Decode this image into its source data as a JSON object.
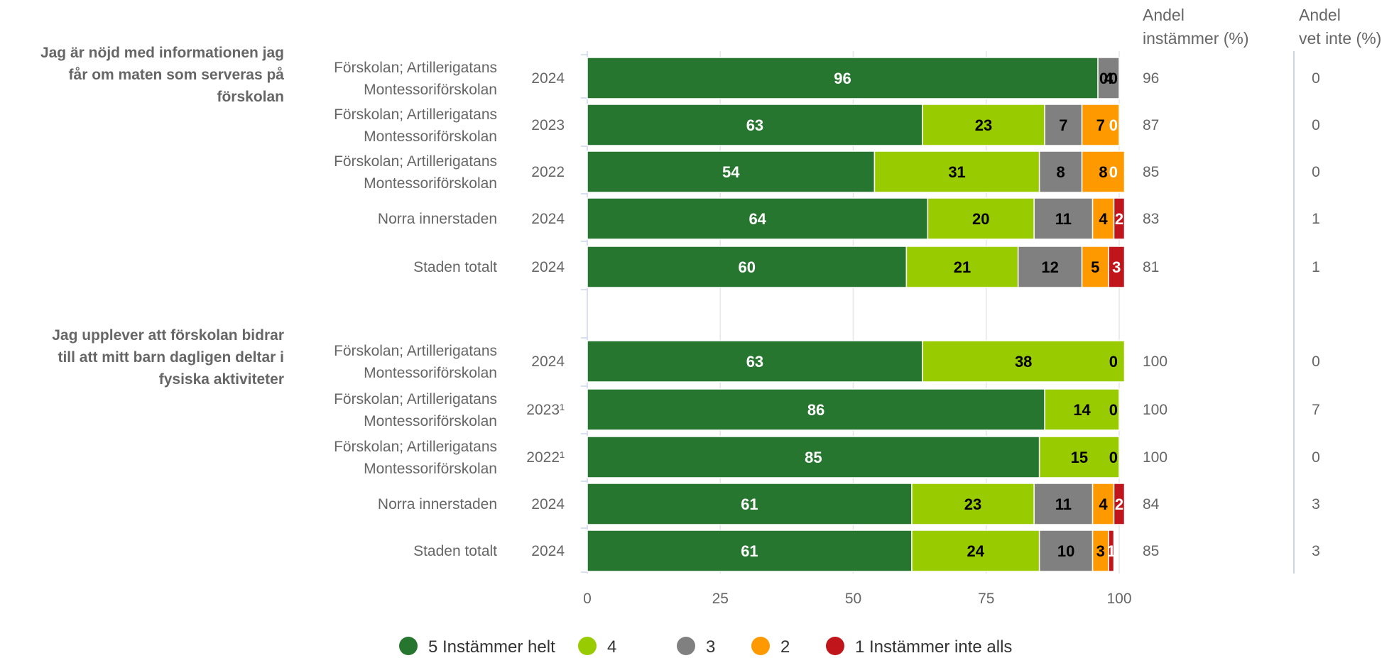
{
  "chart_data": {
    "type": "bar",
    "orientation": "horizontal",
    "stacked": true,
    "xlim": [
      0,
      100
    ],
    "x_ticks": [
      "0",
      "25",
      "50",
      "75",
      "100"
    ],
    "grid": true,
    "legend_position": "bottom",
    "colors": [
      "#267630",
      "#99cc00",
      "#808080",
      "#ff9900",
      "#c0161b"
    ],
    "label_colors": [
      "#ffffff",
      "#000000",
      "#000000",
      "#000000",
      "#ffffff"
    ],
    "series": [
      {
        "name": "5 Instämmer helt"
      },
      {
        "name": "4"
      },
      {
        "name": "3"
      },
      {
        "name": "2"
      },
      {
        "name": "1 Instämmer inte alls"
      }
    ],
    "stat_headers": [
      [
        "Andel",
        "instämmer (%)"
      ],
      [
        "Andel",
        "vet inte (%)"
      ]
    ],
    "groups": [
      {
        "title": [
          "Jag är nöjd med informationen jag",
          "får om maten som serveras på",
          "förskolan"
        ],
        "rows": [
          {
            "label": [
              "Förskolan; Artillerigatans",
              "Montessoriförskolan"
            ],
            "year": "2024",
            "values": [
              96,
              0,
              4,
              0,
              0
            ],
            "labels": [
              "96",
              "0",
              "4",
              "0",
              ""
            ],
            "agree": "96",
            "dont_know": "0"
          },
          {
            "label": [
              "Förskolan; Artillerigatans",
              "Montessoriförskolan"
            ],
            "year": "2023",
            "values": [
              63,
              23,
              7,
              7,
              0
            ],
            "labels": [
              "63",
              "23",
              "7",
              "7",
              "0"
            ],
            "agree": "87",
            "dont_know": "0"
          },
          {
            "label": [
              "Förskolan; Artillerigatans",
              "Montessoriförskolan"
            ],
            "year": "2022",
            "values": [
              54,
              31,
              8,
              8,
              0
            ],
            "labels": [
              "54",
              "31",
              "8",
              "8",
              "0"
            ],
            "agree": "85",
            "dont_know": "0"
          },
          {
            "label": [
              "Norra innerstaden"
            ],
            "year": "2024",
            "values": [
              64,
              20,
              11,
              4,
              2
            ],
            "labels": [
              "64",
              "20",
              "11",
              "4",
              "2"
            ],
            "agree": "83",
            "dont_know": "1"
          },
          {
            "label": [
              "Staden totalt"
            ],
            "year": "2024",
            "values": [
              60,
              21,
              12,
              5,
              3
            ],
            "labels": [
              "60",
              "21",
              "12",
              "5",
              "3"
            ],
            "agree": "81",
            "dont_know": "1"
          }
        ]
      },
      {
        "title": [
          "Jag upplever att förskolan bidrar",
          "till att mitt barn dagligen deltar i",
          "fysiska aktiviteter"
        ],
        "rows": [
          {
            "label": [
              "Förskolan; Artillerigatans",
              "Montessoriförskolan"
            ],
            "year": "2024",
            "values": [
              63,
              38,
              0,
              0,
              0
            ],
            "labels": [
              "63",
              "38",
              "0",
              "",
              ""
            ],
            "agree": "100",
            "dont_know": "0"
          },
          {
            "label": [
              "Förskolan; Artillerigatans",
              "Montessoriförskolan"
            ],
            "year": "2023¹",
            "values": [
              86,
              14,
              0,
              0,
              0
            ],
            "labels": [
              "86",
              "14",
              "0",
              "",
              ""
            ],
            "agree": "100",
            "dont_know": "7"
          },
          {
            "label": [
              "Förskolan; Artillerigatans",
              "Montessoriförskolan"
            ],
            "year": "2022¹",
            "values": [
              85,
              15,
              0,
              0,
              0
            ],
            "labels": [
              "85",
              "15",
              "0",
              "",
              ""
            ],
            "agree": "100",
            "dont_know": "0"
          },
          {
            "label": [
              "Norra innerstaden"
            ],
            "year": "2024",
            "values": [
              61,
              23,
              11,
              4,
              2
            ],
            "labels": [
              "61",
              "23",
              "11",
              "4",
              "2"
            ],
            "agree": "84",
            "dont_know": "3"
          },
          {
            "label": [
              "Staden totalt"
            ],
            "year": "2024",
            "values": [
              61,
              24,
              10,
              3,
              1
            ],
            "labels": [
              "61",
              "24",
              "10",
              "3",
              "1"
            ],
            "agree": "85",
            "dont_know": "3"
          }
        ]
      }
    ]
  }
}
